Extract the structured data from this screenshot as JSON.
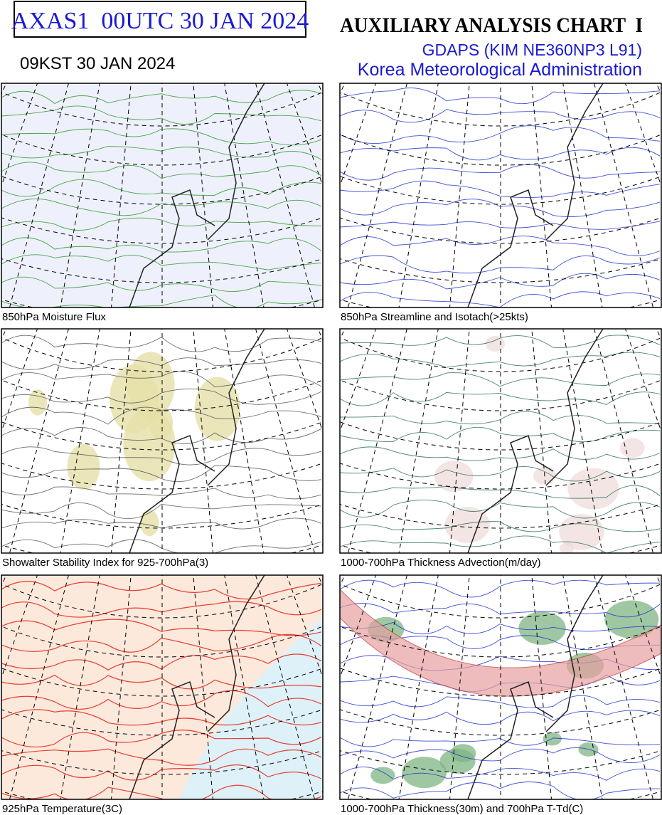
{
  "header": {
    "product_id": "AXAS1  00UTC 30 JAN 2024",
    "local_time": "09KST 30 JAN 2024",
    "title": "AUXILIARY ANALYSIS CHART  I",
    "model": "GDAPS (KIM NE360NP3 L91)",
    "agency": "Korea Meteorological Administration"
  },
  "panels": [
    {
      "caption": "850hPa Moisture Flux"
    },
    {
      "caption": "850hPa Streamline and Isotach(>25kts)"
    },
    {
      "caption": "Showalter Stability Index for 925-700hPa(3)"
    },
    {
      "caption": "1000-700hPa Thickness Advection(m/day)"
    },
    {
      "caption": "925hPa Temperature(3C)"
    },
    {
      "caption": "1000-700hPa Thickness(30m) and 700hPa T-Td(C)"
    }
  ]
}
